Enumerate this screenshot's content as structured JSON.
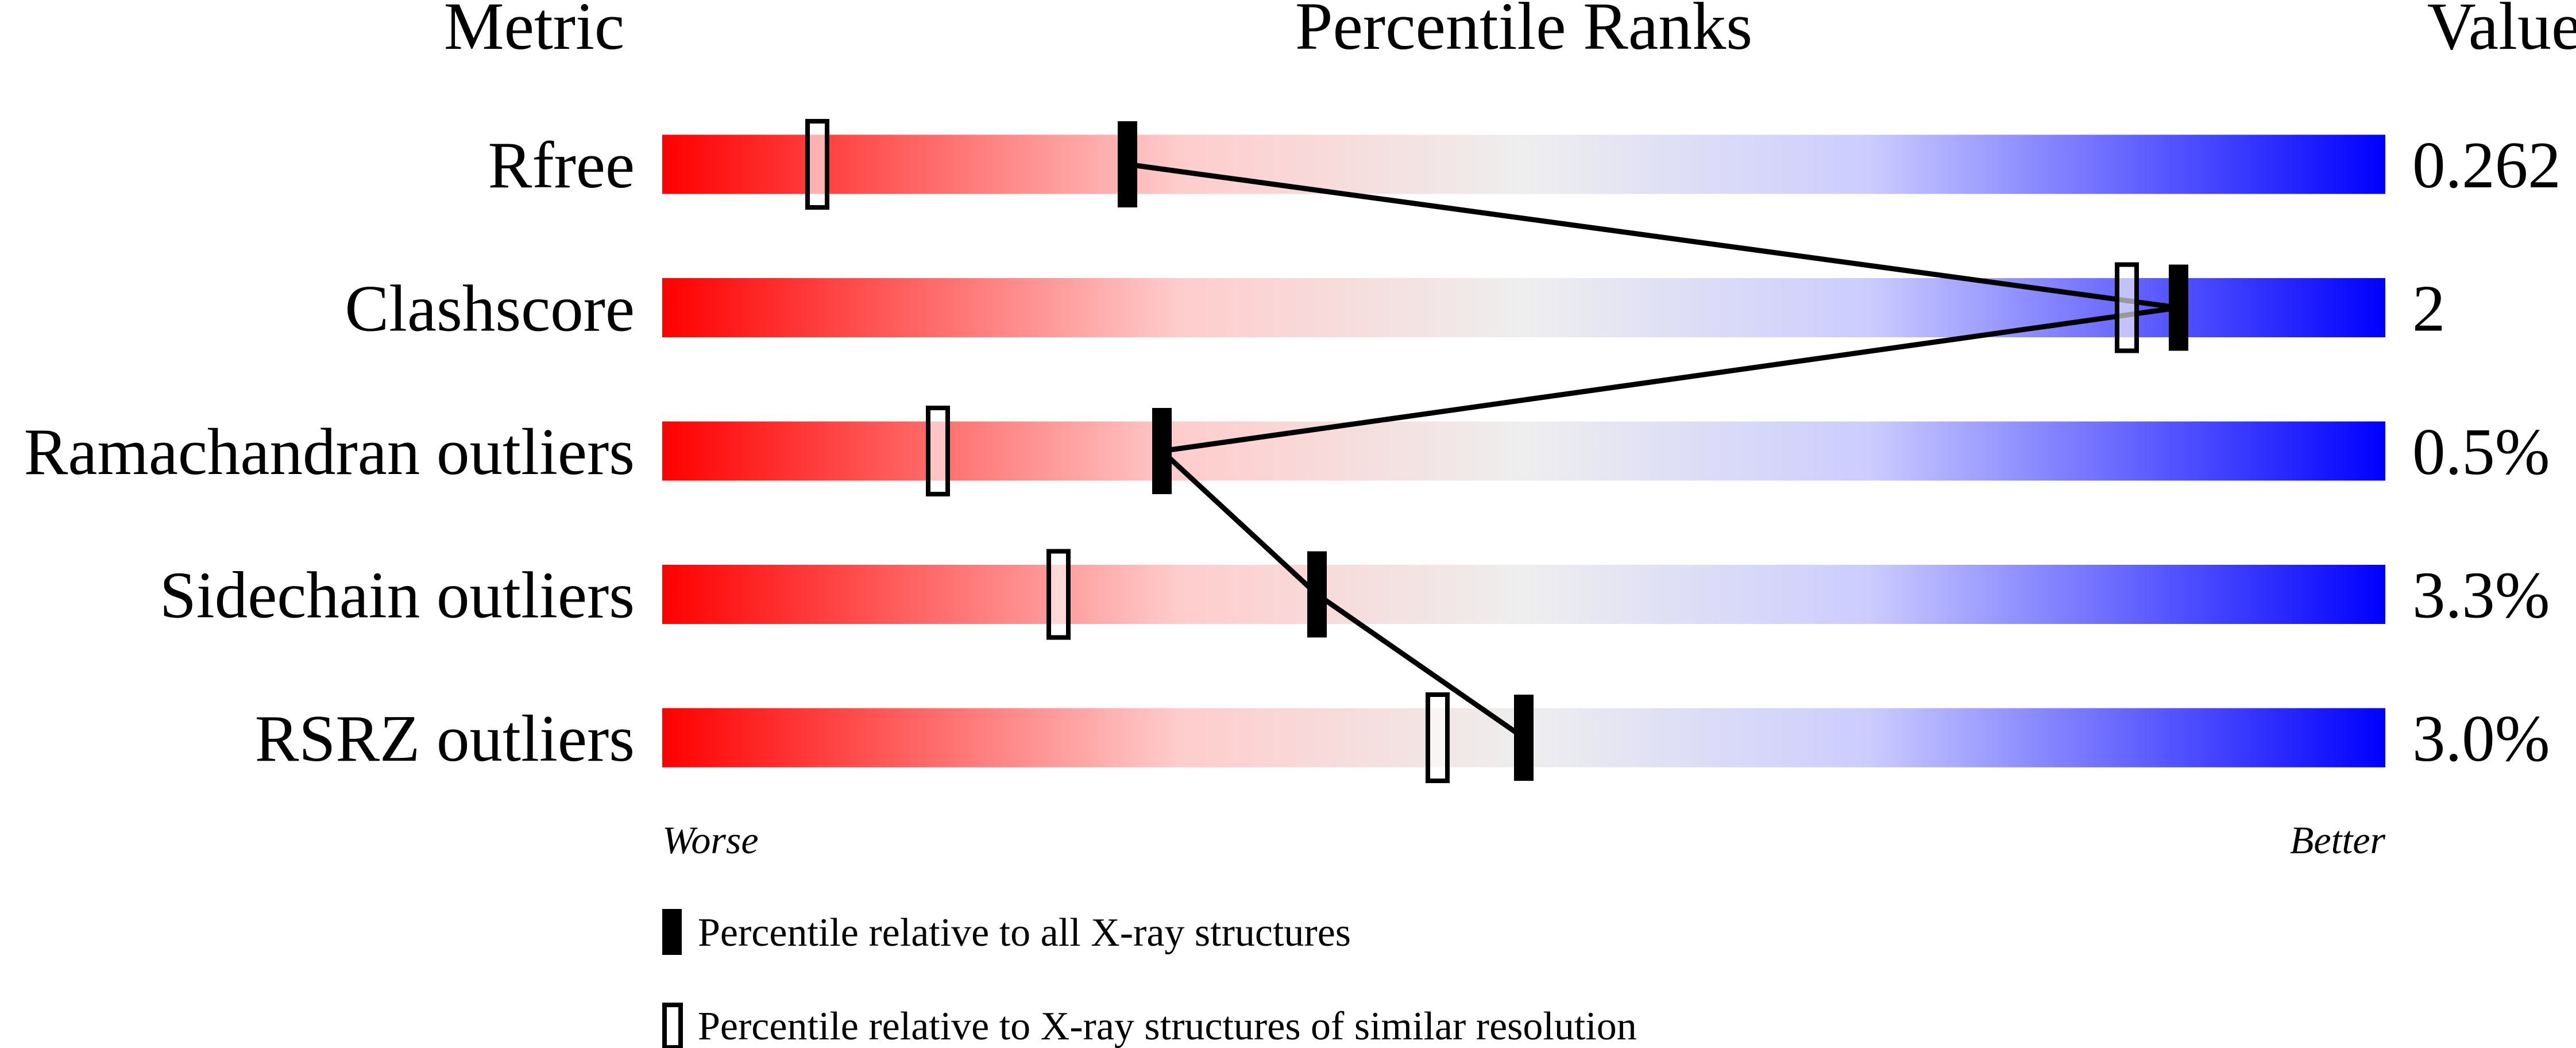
{
  "chart_data": {
    "type": "percentile-slider",
    "headers": {
      "metric": "Metric",
      "ranks": "Percentile Ranks",
      "value": "Value"
    },
    "xlim": [
      0,
      100
    ],
    "scale_labels": {
      "left": "Worse",
      "right": "Better"
    },
    "gradient_colors": [
      "#ff0000",
      "#ffcccc",
      "#eeeeee",
      "#ccccff",
      "#0000ff"
    ],
    "rows": [
      {
        "metric": "Rfree",
        "value": "0.262",
        "percentile_all": 27,
        "percentile_similar": 9
      },
      {
        "metric": "Clashscore",
        "value": "2",
        "percentile_all": 88,
        "percentile_similar": 85
      },
      {
        "metric": "Ramachandran outliers",
        "value": "0.5%",
        "percentile_all": 29,
        "percentile_similar": 16
      },
      {
        "metric": "Sidechain outliers",
        "value": "3.3%",
        "percentile_all": 38,
        "percentile_similar": 23
      },
      {
        "metric": "RSRZ outliers",
        "value": "3.0%",
        "percentile_all": 50,
        "percentile_similar": 45
      }
    ],
    "legend": [
      {
        "marker": "filled",
        "label": "Percentile relative to all X-ray structures"
      },
      {
        "marker": "open",
        "label": "Percentile relative to X-ray structures of similar resolution"
      }
    ]
  }
}
